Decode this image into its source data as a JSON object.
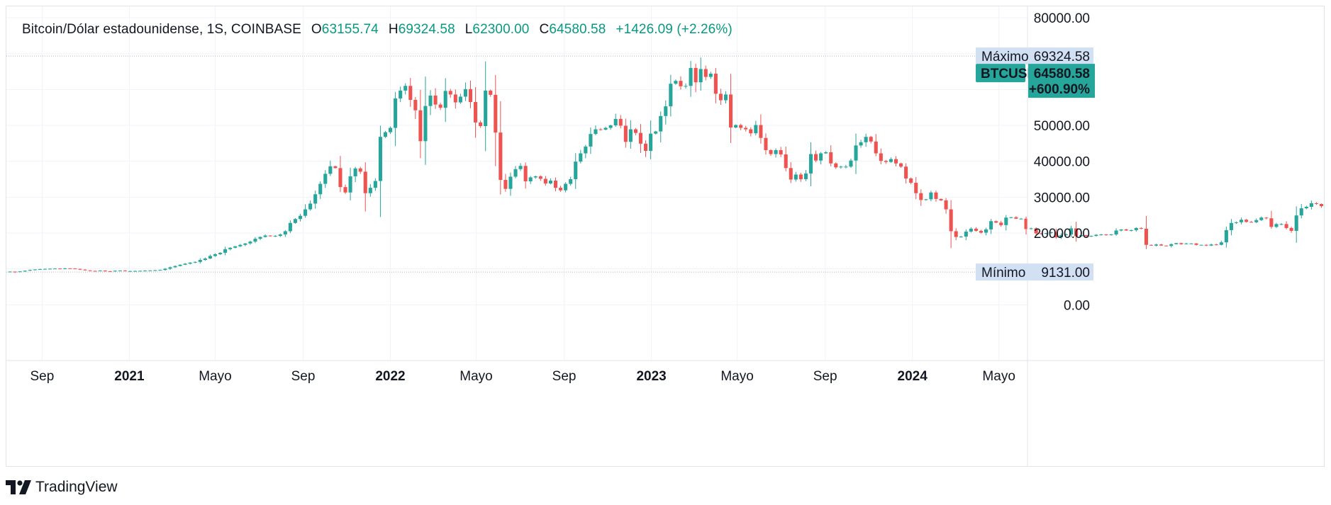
{
  "legend": {
    "symbol": "Bitcoin/Dólar estadounidense, 1S, COINBASE",
    "o_label": "O",
    "o_value": "63155.74",
    "h_label": "H",
    "h_value": "69324.58",
    "l_label": "L",
    "l_value": "62300.00",
    "c_label": "C",
    "c_value": "64580.58",
    "change": "+1426.09 (+2.26%)"
  },
  "brand": {
    "name": "TradingView"
  },
  "colors": {
    "up": "#26a69a",
    "down": "#ef5350",
    "grid": "#f0f3fa",
    "dotted": "#b2b5be",
    "label_bg": "#d1e0f3",
    "price_tag": "#26a69a"
  },
  "chart_data": {
    "type": "candlestick",
    "symbol": "BTCUSD",
    "interval": "1S",
    "exchange": "COINBASE",
    "price_axis": {
      "min": -10000,
      "max": 80000,
      "ticks": [
        "80000.00",
        "50000.00",
        "40000.00",
        "30000.00",
        "20000.00",
        "0.00"
      ],
      "tick_values": [
        80000,
        50000,
        40000,
        30000,
        20000,
        0
      ],
      "side": "right"
    },
    "time_axis": {
      "start": "2020-07-13",
      "end": "2024-06-10",
      "ticks": [
        {
          "label": "Sep",
          "date": "2020-09-01",
          "year": false
        },
        {
          "label": "2021",
          "date": "2021-01-01",
          "year": true
        },
        {
          "label": "Mayo",
          "date": "2021-05-01",
          "year": false
        },
        {
          "label": "Sep",
          "date": "2021-09-01",
          "year": false
        },
        {
          "label": "2022",
          "date": "2022-01-01",
          "year": true
        },
        {
          "label": "Mayo",
          "date": "2022-05-01",
          "year": false
        },
        {
          "label": "Sep",
          "date": "2022-09-01",
          "year": false
        },
        {
          "label": "2023",
          "date": "2023-01-01",
          "year": true
        },
        {
          "label": "Mayo",
          "date": "2023-05-01",
          "year": false
        },
        {
          "label": "Sep",
          "date": "2023-09-01",
          "year": false
        },
        {
          "label": "2024",
          "date": "2024-01-01",
          "year": true
        },
        {
          "label": "Mayo",
          "date": "2024-05-01",
          "year": false
        }
      ]
    },
    "high_marker": {
      "label": "Máximo",
      "value": 69324.58,
      "value_text": "69324.58"
    },
    "low_marker": {
      "label": "Mínimo",
      "value": 9131.0,
      "value_text": "9131.00"
    },
    "last_price": {
      "symbol": "BTCUSD",
      "value": 64580.58,
      "value_text": "64580.58",
      "change_text": "+600.90%"
    },
    "grid": true,
    "closes": [
      9250,
      9150,
      9300,
      9500,
      9700,
      9850,
      9950,
      10000,
      10050,
      10100,
      10050,
      10150,
      10100,
      10000,
      9800,
      9600,
      9450,
      9400,
      9550,
      9350,
      9300,
      9500,
      9550,
      9400,
      9400,
      9420,
      9470,
      9530,
      9580,
      9640,
      9700,
      10050,
      10450,
      10800,
      11150,
      11450,
      11750,
      11950,
      12500,
      12900,
      13600,
      14100,
      14500,
      15500,
      15900,
      16300,
      16700,
      17100,
      17600,
      18400,
      18900,
      19300,
      19100,
      19200,
      19600,
      20500,
      22800,
      23900,
      24800,
      26600,
      28200,
      30800,
      33700,
      36500,
      38600,
      38100,
      32800,
      31300,
      35800,
      38000,
      37100,
      31100,
      32600,
      34500,
      46800,
      48100,
      49300,
      57500,
      59700,
      61000,
      57100,
      54200,
      45600,
      55400,
      58300,
      55800,
      54900,
      59600,
      58600,
      56400,
      58000,
      60100,
      56500,
      50800,
      49800,
      59700,
      58500,
      48000,
      34800,
      32300,
      35700,
      37800,
      38700,
      34400,
      35500,
      35800,
      35100,
      33800,
      34600,
      32600,
      31900,
      33700,
      35000,
      39900,
      42200,
      44100,
      47600,
      48900,
      48800,
      49300,
      50000,
      51800,
      49900,
      45400,
      48900,
      47900,
      44900,
      42900,
      47700,
      48300,
      52600,
      55300,
      61600,
      62400,
      60900,
      61000,
      66000,
      62000,
      65700,
      63500,
      64400,
      58800,
      57000,
      58600,
      49400,
      50100,
      49300,
      48900,
      47800,
      50100,
      46500,
      43100,
      42000,
      43100,
      41900,
      38100,
      34900,
      36300,
      35000,
      36600,
      42000,
      40200,
      42200,
      42500,
      39400,
      38300,
      38500,
      38500,
      40200,
      44400,
      45300,
      46800,
      45500,
      42200,
      40100,
      39800,
      40600,
      39400,
      38500,
      35200,
      34000,
      31100,
      29200,
      29400,
      31300,
      29500,
      29100,
      26600,
      20500,
      18900,
      19000,
      20400,
      21200,
      20600,
      20100,
      21000,
      23300,
      22900,
      22200,
      24300,
      24400,
      24000,
      24000,
      21100,
      21300,
      19900,
      19800,
      20000,
      20200,
      18800,
      19400,
      19600,
      21300,
      19100,
      19400,
      19100,
      19200,
      19500,
      19600,
      19400,
      19600,
      20700,
      21000,
      20700,
      20800,
      21400,
      21200,
      16700,
      16500,
      16800,
      16500,
      16400,
      16900,
      17200,
      16900,
      17100,
      17100,
      16700,
      16700,
      16500,
      16800,
      16700,
      17400,
      20800,
      22800,
      23000,
      23700,
      23100,
      23000,
      23600,
      24300,
      24100,
      21700,
      22500,
      22500,
      21400,
      20600,
      24900,
      26900,
      27300,
      28300,
      28100,
      27500,
      28400,
      30300,
      28300,
      29500,
      28400,
      29200,
      27800,
      27100,
      26800,
      27700,
      27100,
      26800,
      27200,
      26500,
      25800,
      26300,
      26500,
      30500,
      30600,
      30200,
      30400,
      30100,
      29800,
      29900,
      29600,
      29300,
      29700,
      29400,
      29200,
      29300,
      26700,
      26100,
      26100,
      26000,
      25900,
      25800,
      25900,
      26200,
      26800,
      26600,
      26800,
      27200,
      27800,
      28000,
      26800,
      27000,
      27900,
      29900,
      34500,
      34500,
      34800,
      35100,
      36600,
      37400,
      37700,
      37400,
      37700,
      38400,
      39900,
      41500,
      43800,
      43700,
      42300,
      43200,
      44000,
      41900,
      41800,
      42500,
      41600,
      42100,
      43300,
      43900,
      41600,
      40600,
      41600,
      41900,
      42600,
      42100,
      43700,
      48300,
      51500,
      51800,
      51600,
      61500,
      62600,
      64600
    ]
  }
}
